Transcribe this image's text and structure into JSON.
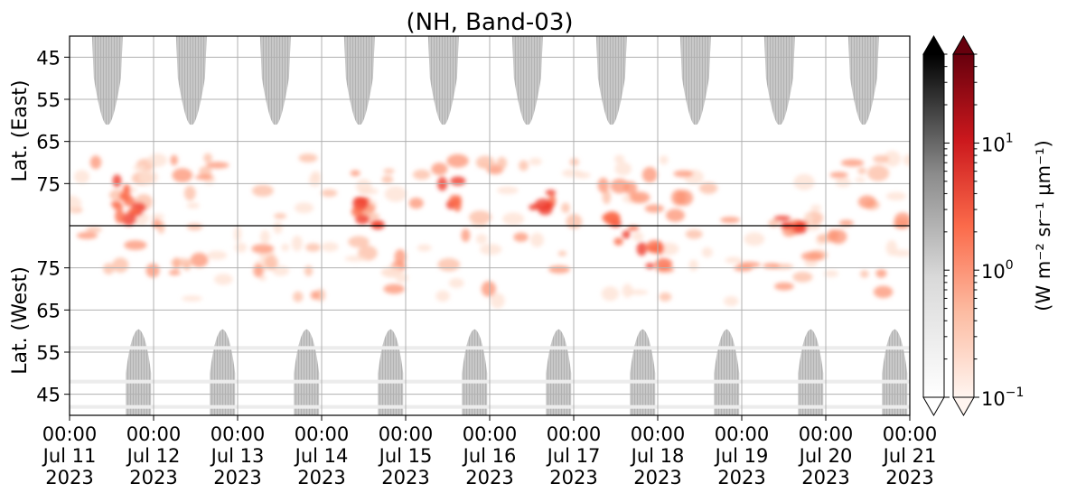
{
  "chart_data": {
    "type": "heatmap",
    "title": "(NH, Band-03)",
    "ylabel_top": "Lat. (East)",
    "ylabel_bottom": "Lat. (West)",
    "x_ticks": [
      {
        "time": "00:00",
        "date": "Jul 11",
        "year": "2023"
      },
      {
        "time": "00:00",
        "date": "Jul 12",
        "year": "2023"
      },
      {
        "time": "00:00",
        "date": "Jul 13",
        "year": "2023"
      },
      {
        "time": "00:00",
        "date": "Jul 14",
        "year": "2023"
      },
      {
        "time": "00:00",
        "date": "Jul 15",
        "year": "2023"
      },
      {
        "time": "00:00",
        "date": "Jul 16",
        "year": "2023"
      },
      {
        "time": "00:00",
        "date": "Jul 17",
        "year": "2023"
      },
      {
        "time": "00:00",
        "date": "Jul 18",
        "year": "2023"
      },
      {
        "time": "00:00",
        "date": "Jul 19",
        "year": "2023"
      },
      {
        "time": "00:00",
        "date": "Jul 20",
        "year": "2023"
      },
      {
        "time": "00:00",
        "date": "Jul 21",
        "year": "2023"
      }
    ],
    "y_ticks_top": [
      "45",
      "55",
      "65",
      "75"
    ],
    "y_ticks_bottom": [
      "75",
      "65",
      "55",
      "45"
    ],
    "x_range": [
      "2023-07-11 00:00",
      "2023-07-21 00:00"
    ],
    "y_range_top": [
      40,
      85
    ],
    "y_range_bottom": [
      85,
      40
    ],
    "grid": true,
    "colorbar_gray": {
      "colormap": "Greys",
      "scale": "log",
      "extend": "both"
    },
    "colorbar_red": {
      "colormap": "Reds",
      "scale": "log",
      "range": [
        0.1,
        50
      ],
      "extend": "both",
      "ticks": [
        {
          "base": "10",
          "exp": "−1"
        },
        {
          "base": "10",
          "exp": "0"
        },
        {
          "base": "10",
          "exp": "1"
        }
      ],
      "label": "(W m⁻² sr⁻¹ μm⁻¹)"
    },
    "colors": {
      "red_max": "#67000d",
      "red_mid": "#ef3b2c",
      "red_low": "#fee0d2",
      "gray": "#bdbdbd",
      "gray_max": "#000000"
    }
  }
}
